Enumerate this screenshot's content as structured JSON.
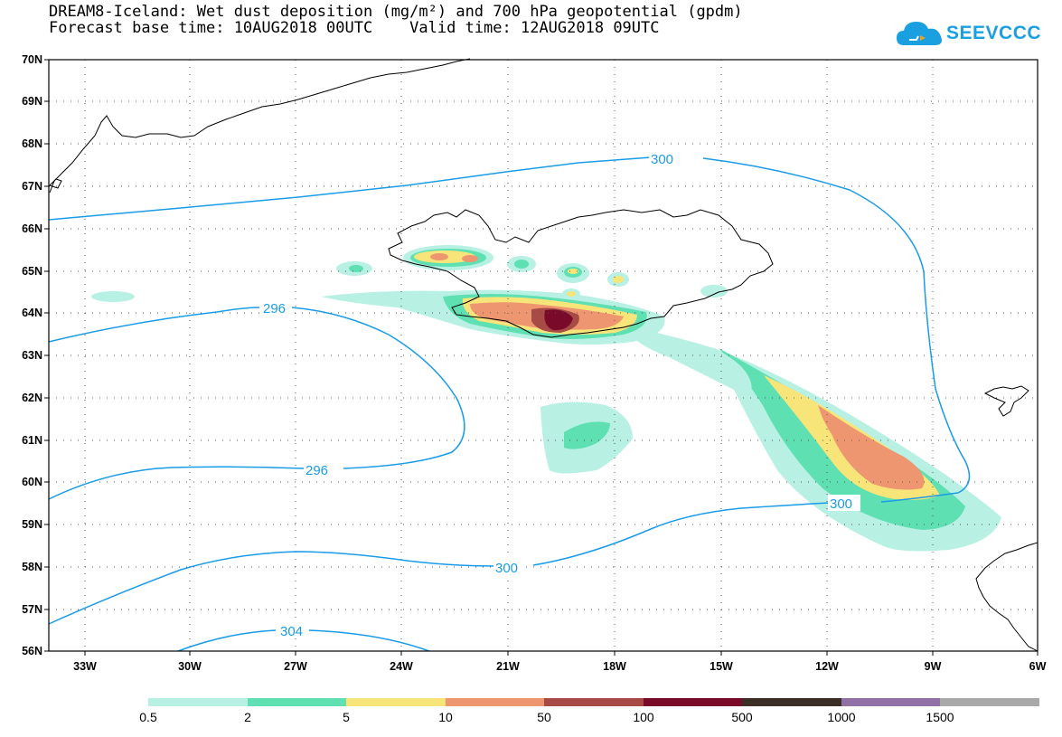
{
  "header": {
    "title_line1": "DREAM8-Iceland: Wet dust deposition (mg/m²) and 700 hPa geopotential (gpdm)",
    "title_line2": "Forecast base time: 10AUG2018 00UTC    Valid time: 12AUG2018 09UTC"
  },
  "logo": {
    "text": "SEEVCCC",
    "icon": "cloud-icon",
    "color": "#1aa0e0"
  },
  "map": {
    "lat_labels": [
      "70N",
      "69N",
      "68N",
      "67N",
      "66N",
      "65N",
      "64N",
      "63N",
      "62N",
      "61N",
      "60N",
      "59N",
      "58N",
      "57N",
      "56N"
    ],
    "lon_labels": [
      "33W",
      "30W",
      "27W",
      "24W",
      "21W",
      "18W",
      "15W",
      "12W",
      "9W",
      "6W"
    ],
    "lat_range": [
      56,
      70
    ],
    "lon_range": [
      -34.3,
      -6
    ],
    "contour_labels": [
      "300",
      "296",
      "296",
      "300",
      "300",
      "304"
    ],
    "grid": "dotted"
  },
  "colorbar": {
    "labels": [
      "0.5",
      "2",
      "5",
      "10",
      "50",
      "100",
      "500",
      "1000",
      "1500"
    ],
    "colors": [
      "#b8f0e3",
      "#5ee0b2",
      "#f7e57a",
      "#ee9670",
      "#a64b45",
      "#7a0a2a",
      "#3a2e25",
      "#9070a5",
      "#a9a9a9"
    ]
  }
}
